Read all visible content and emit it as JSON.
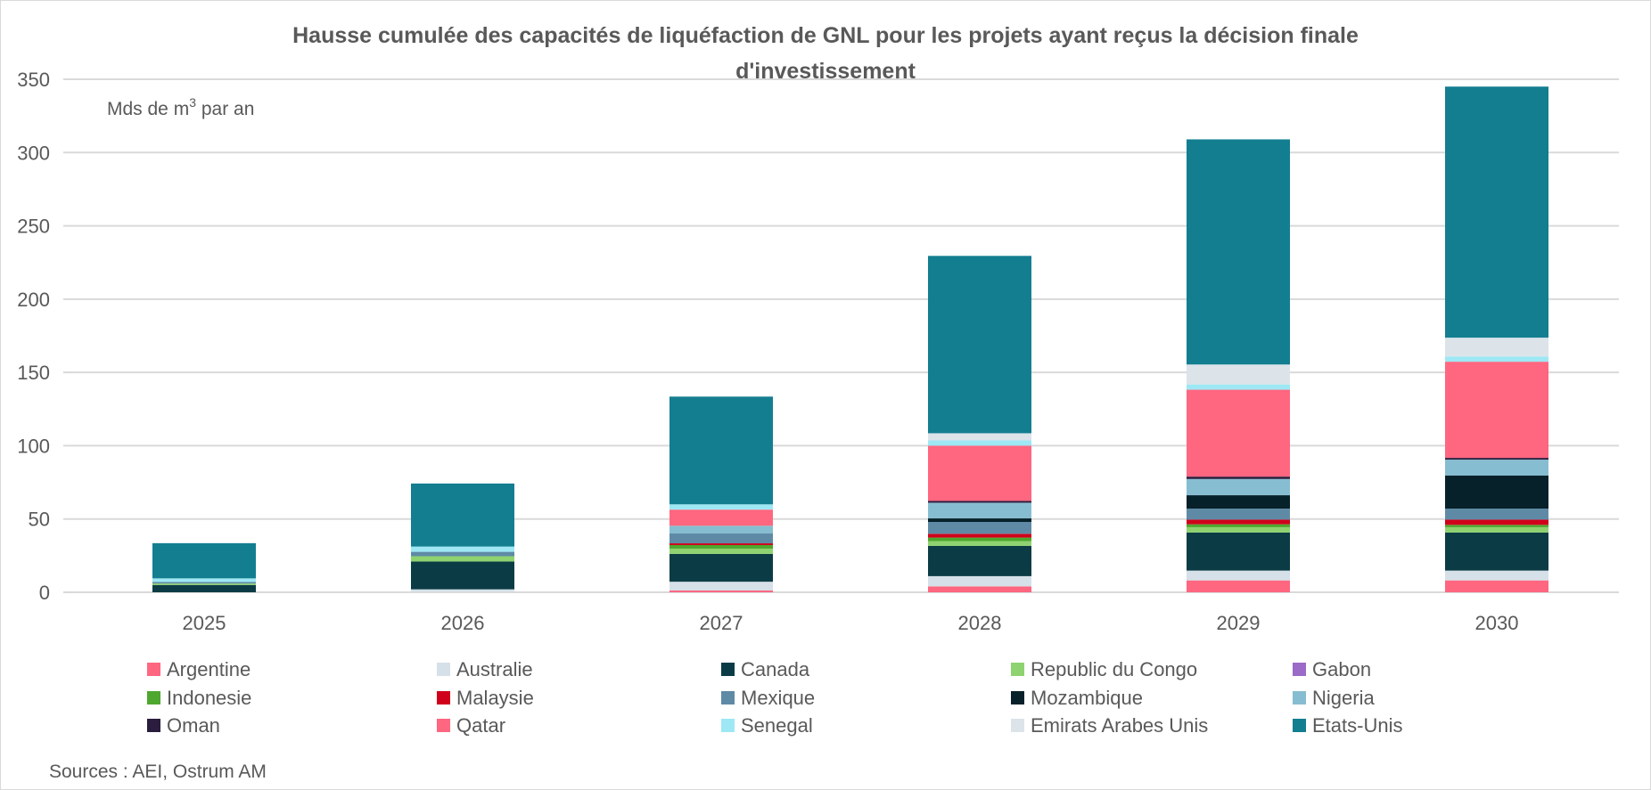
{
  "chart_data": {
    "type": "bar",
    "stacked": true,
    "title": "Hausse cumulée des capacités de liquéfaction de GNL pour les projets ayant reçus la décision finale d'investissement",
    "title_lines": [
      "Hausse cumulée des capacités de liquéfaction de GNL pour les projets ayant reçus la décision finale",
      "d'investissement"
    ],
    "ylabel": "Mds de m³ par an",
    "ylabel_parts": {
      "pre": "Mds de m",
      "sup": "3",
      "post": " par an"
    },
    "xlabel": "",
    "ylim": [
      0,
      350
    ],
    "yticks": [
      0,
      50,
      100,
      150,
      200,
      250,
      300,
      350
    ],
    "grid": true,
    "legend_position": "bottom",
    "categories": [
      "2025",
      "2026",
      "2027",
      "2028",
      "2029",
      "2030"
    ],
    "series": [
      {
        "name": "Argentine",
        "color": "#FF6680",
        "values": [
          0,
          0,
          1.2,
          4,
          8.1,
          8.1
        ]
      },
      {
        "name": "Australie",
        "color": "#D6E0E8",
        "values": [
          0,
          2,
          6,
          7,
          6.7,
          6.7
        ]
      },
      {
        "name": "Canada",
        "color": "#0B3C45",
        "values": [
          5,
          19,
          19,
          20.7,
          26,
          26
        ]
      },
      {
        "name": "Republic du Congo",
        "color": "#8ED36F",
        "values": [
          1,
          3.6,
          3.6,
          3.2,
          3.6,
          3.6
        ]
      },
      {
        "name": "Gabon",
        "color": "#9B6BC7",
        "values": [
          0,
          0,
          0,
          0,
          0,
          0
        ]
      },
      {
        "name": "Indonesie",
        "color": "#4EA72E",
        "values": [
          0,
          0,
          2.4,
          2.4,
          2,
          1.6
        ]
      },
      {
        "name": "Malaysie",
        "color": "#D0021B",
        "values": [
          0,
          0,
          1.2,
          2.6,
          3.2,
          3.6
        ]
      },
      {
        "name": "Mexique",
        "color": "#5F8AA6",
        "values": [
          1,
          3,
          6.7,
          8.1,
          7.5,
          7.5
        ]
      },
      {
        "name": "Mozambique",
        "color": "#06212A",
        "values": [
          0,
          0,
          0,
          2.4,
          9.1,
          22.5
        ]
      },
      {
        "name": "Nigeria",
        "color": "#87BDD0",
        "values": [
          0,
          0,
          5.3,
          10.7,
          11.1,
          10.9
        ]
      },
      {
        "name": "Oman",
        "color": "#2B1D3D",
        "values": [
          0,
          0,
          0,
          1.2,
          1.6,
          1.2
        ]
      },
      {
        "name": "Qatar",
        "color": "#FF6680",
        "values": [
          0,
          0,
          11,
          37.7,
          59.3,
          65.6
        ]
      },
      {
        "name": "Senegal",
        "color": "#9DE8F4",
        "values": [
          2.5,
          3.6,
          3.6,
          3.6,
          3.6,
          3.6
        ]
      },
      {
        "name": "Emirats Arabes Unis",
        "color": "#DCE4EA",
        "values": [
          0,
          0,
          0,
          4.9,
          13.6,
          12.8
        ]
      },
      {
        "name": "Etats-Unis",
        "color": "#137E90",
        "values": [
          24,
          43,
          73.5,
          121,
          153.6,
          171.3
        ]
      }
    ]
  },
  "footer": {
    "sources": "Sources : AEI, Ostrum AM"
  },
  "colors": {
    "gridline": "#D9D9D9",
    "text": "#595959"
  }
}
